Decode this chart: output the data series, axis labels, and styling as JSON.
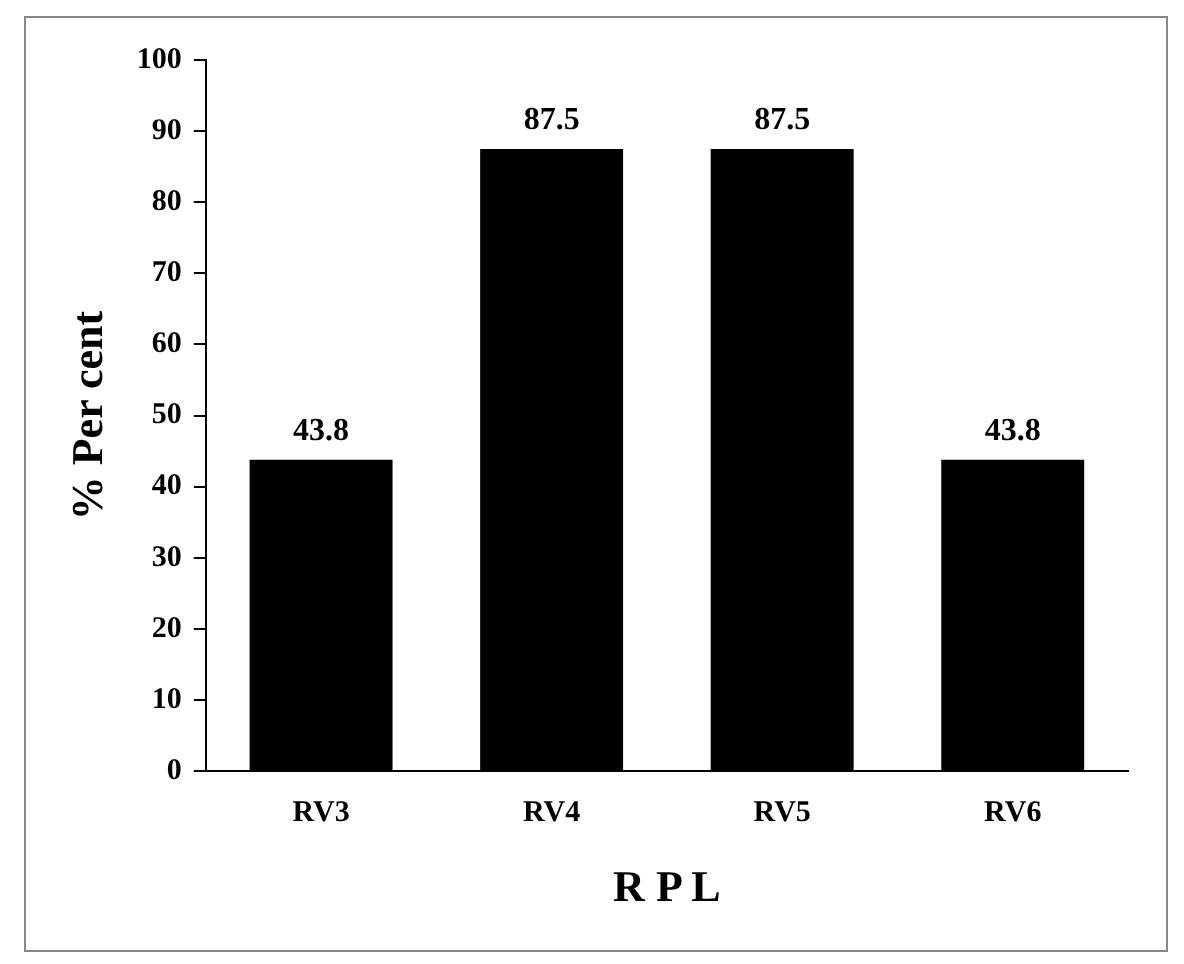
{
  "chart_data": {
    "type": "bar",
    "xlabel": "R P L",
    "ylabel": "% Per cent",
    "categories": [
      "RV3",
      "RV4",
      "RV5",
      "RV6"
    ],
    "values": [
      43.8,
      87.5,
      87.5,
      43.8
    ],
    "color": "#000000",
    "ylim": [
      0,
      100
    ],
    "yticks": [
      0,
      10,
      20,
      30,
      40,
      50,
      60,
      70,
      80,
      90,
      100
    ],
    "grid": false,
    "legend": false,
    "data_labels": true
  }
}
